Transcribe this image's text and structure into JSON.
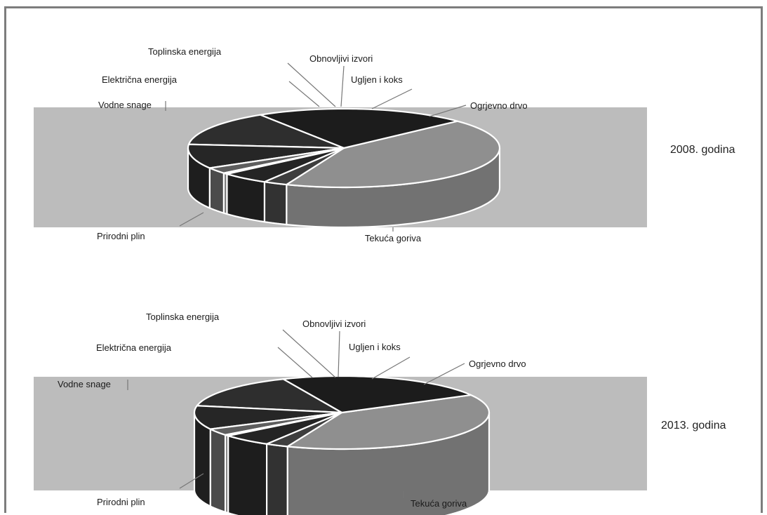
{
  "chart_data": [
    {
      "type": "pie",
      "title": "",
      "year_label": "2008. godina",
      "unit": "%",
      "slices": [
        {
          "name": "Tekuća goriva",
          "value": 43.0,
          "color": "#8f8f8f"
        },
        {
          "name": "Prirodni plin",
          "value": 22.0,
          "color": "#1c1c1c"
        },
        {
          "name": "Vodne snage",
          "value": 14.5,
          "color": "#2e2e2e"
        },
        {
          "name": "Električna energija",
          "value": 10.0,
          "color": "#262626"
        },
        {
          "name": "Toplinska energija",
          "value": 2.5,
          "color": "#5e5e5e"
        },
        {
          "name": "Obnovljivi izvori",
          "value": 0.5,
          "color": "#9a9a9a"
        },
        {
          "name": "Ugljen i koks",
          "value": 5.0,
          "color": "#242424"
        },
        {
          "name": "Ogrjevno drvo",
          "value": 2.5,
          "color": "#3e3e3e"
        }
      ]
    },
    {
      "type": "pie",
      "title": "",
      "year_label": "2013. godina",
      "unit": "%",
      "slices": [
        {
          "name": "Tekuća goriva",
          "value": 39.0,
          "color": "#8f8f8f"
        },
        {
          "name": "Prirodni plin",
          "value": 23.5,
          "color": "#1c1c1c"
        },
        {
          "name": "Vodne snage",
          "value": 15.5,
          "color": "#2e2e2e"
        },
        {
          "name": "Električna energija",
          "value": 10.5,
          "color": "#262626"
        },
        {
          "name": "Toplinska energija",
          "value": 3.0,
          "color": "#5e5e5e"
        },
        {
          "name": "Obnovljivi izvori",
          "value": 0.5,
          "color": "#9a9a9a"
        },
        {
          "name": "Ugljen i koks",
          "value": 5.5,
          "color": "#242424"
        },
        {
          "name": "Ogrjevno drvo",
          "value": 2.5,
          "color": "#3e3e3e"
        }
      ]
    }
  ]
}
